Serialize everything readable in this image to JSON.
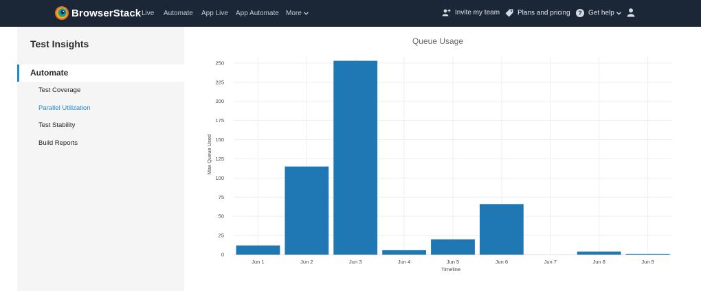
{
  "header": {
    "brand": "BrowserStack",
    "nav": [
      "Live",
      "Automate",
      "App Live",
      "App Automate",
      "More"
    ],
    "invite_label": "Invite my team",
    "plans_label": "Plans and pricing",
    "help_label": "Get help"
  },
  "sidebar": {
    "title": "Test Insights",
    "section": "Automate",
    "items": [
      {
        "label": "Test Coverage",
        "active": false
      },
      {
        "label": "Parallel Utilization",
        "active": true
      },
      {
        "label": "Test Stability",
        "active": false
      },
      {
        "label": "Build Reports",
        "active": false
      }
    ]
  },
  "colors": {
    "accent": "#1e88d0",
    "bar": "#1f77b4",
    "topbar": "#1b2736"
  },
  "chart_data": {
    "type": "bar",
    "title": "Queue Usage",
    "xlabel": "Timeline",
    "ylabel": "Max Queue Used",
    "categories": [
      "Jun 1",
      "Jun 2",
      "Jun 3",
      "Jun 4",
      "Jun 5",
      "Jun 6",
      "Jun 7",
      "Jun 8",
      "Jun 9"
    ],
    "values": [
      12,
      115,
      253,
      6,
      20,
      66,
      0,
      4,
      1
    ],
    "yticks": [
      0,
      25,
      50,
      75,
      100,
      125,
      150,
      175,
      200,
      225,
      250
    ],
    "ylim": [
      0,
      258
    ],
    "grid": true
  }
}
